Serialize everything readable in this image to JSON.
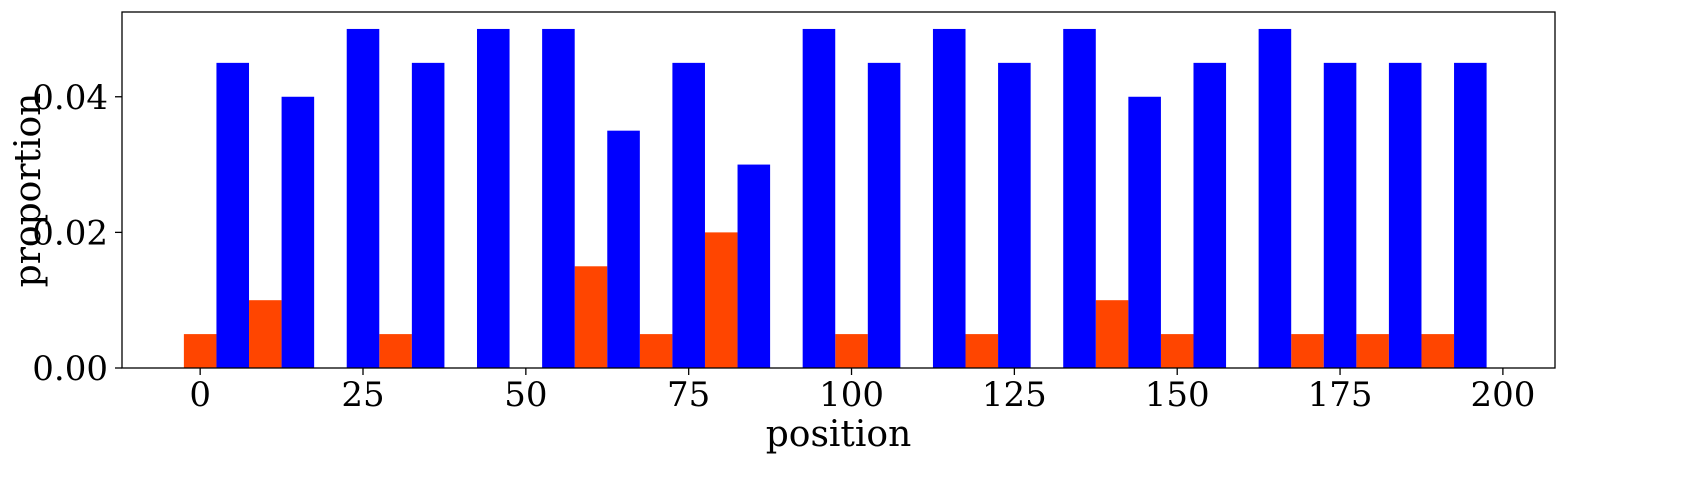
{
  "chart_data": {
    "type": "bar",
    "xlabel": "position",
    "ylabel": "proportion",
    "xlim": [
      -12,
      208
    ],
    "ylim": [
      0,
      0.0525
    ],
    "xticks": [
      0,
      25,
      50,
      75,
      100,
      125,
      150,
      175,
      200
    ],
    "xtick_labels": [
      "0",
      "25",
      "50",
      "75",
      "100",
      "125",
      "150",
      "175",
      "200"
    ],
    "yticks": [
      0,
      0.02,
      0.04
    ],
    "ytick_labels": [
      "0.00",
      "0.02",
      "0.04"
    ],
    "grid": false,
    "legend": "none",
    "bar_width": 5,
    "series": [
      {
        "color": "#ff4500",
        "x": [
          0,
          10,
          30,
          60,
          70,
          80,
          100,
          120,
          140,
          150,
          170,
          180,
          190
        ],
        "values": [
          0.005,
          0.01,
          0.005,
          0.015,
          0.005,
          0.02,
          0.005,
          0.005,
          0.01,
          0.005,
          0.005,
          0.005,
          0.005
        ]
      },
      {
        "color": "#0000ff",
        "x": [
          5,
          15,
          25,
          35,
          45,
          55,
          65,
          75,
          85,
          95,
          105,
          115,
          125,
          135,
          145,
          155,
          165,
          175,
          185,
          195
        ],
        "values": [
          0.045,
          0.04,
          0.05,
          0.045,
          0.05,
          0.05,
          0.035,
          0.045,
          0.03,
          0.05,
          0.045,
          0.05,
          0.045,
          0.05,
          0.04,
          0.045,
          0.05,
          0.045,
          0.045,
          0.045
        ]
      }
    ]
  }
}
